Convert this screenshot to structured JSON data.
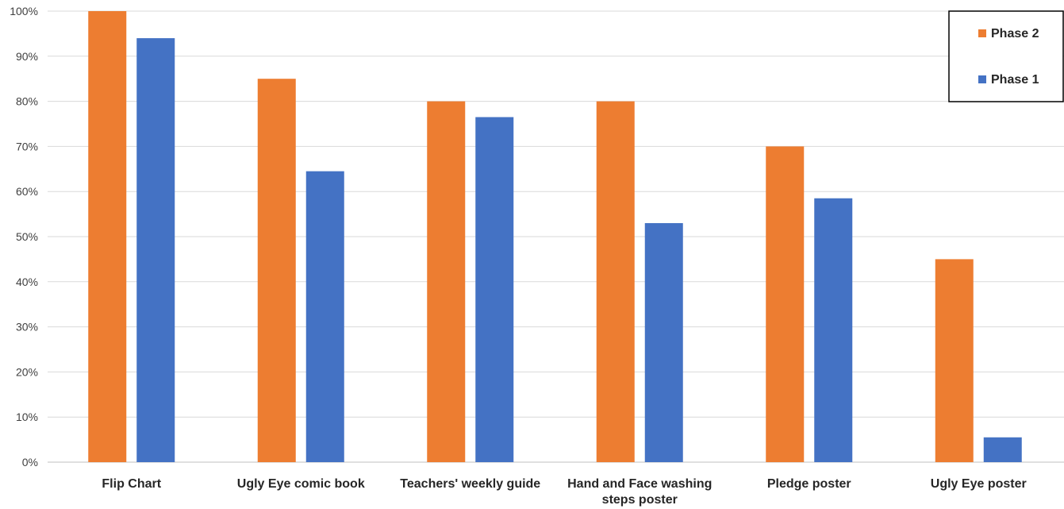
{
  "chart_data": {
    "type": "bar",
    "categories": [
      [
        "Flip Chart"
      ],
      [
        "Ugly Eye comic book"
      ],
      [
        "Teachers' weekly guide"
      ],
      [
        "Hand and Face washing",
        "steps poster"
      ],
      [
        "Pledge poster"
      ],
      [
        "Ugly Eye poster"
      ]
    ],
    "series": [
      {
        "name": "Phase 2",
        "color": "#ED7D31",
        "values": [
          100,
          85,
          80,
          80,
          70,
          45
        ]
      },
      {
        "name": "Phase 1",
        "color": "#4472C4",
        "values": [
          94,
          64.5,
          76.5,
          53,
          58.5,
          5.5
        ]
      }
    ],
    "y_ticks": [
      "0%",
      "10%",
      "20%",
      "30%",
      "40%",
      "50%",
      "60%",
      "70%",
      "80%",
      "90%",
      "100%"
    ],
    "ylim": [
      0,
      100
    ],
    "grid": true,
    "legend_position": "top-right",
    "gridline_color": "#D9D9D9"
  }
}
